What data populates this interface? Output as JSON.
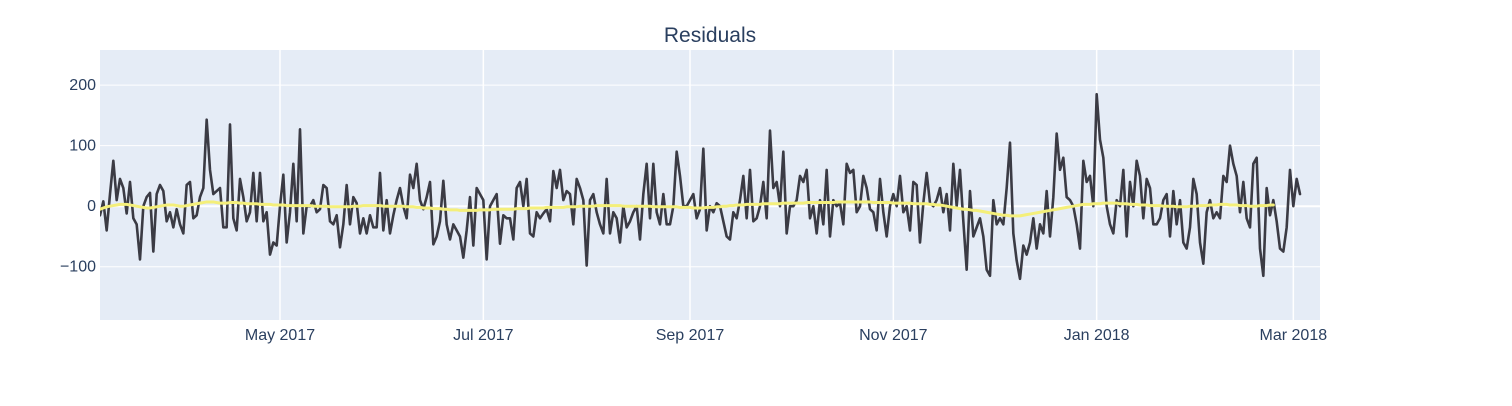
{
  "chart_data": {
    "type": "line",
    "title": "Residuals",
    "xlabel": "",
    "ylabel": "",
    "x_axis": {
      "type": "date",
      "range": [
        "2017-03-08",
        "2018-03-09"
      ],
      "ticks": [
        "2017-05-01",
        "2017-07-01",
        "2017-09-01",
        "2017-11-01",
        "2018-01-01",
        "2018-03-01"
      ],
      "tick_labels": [
        "May 2017",
        "Jul 2017",
        "Sep 2017",
        "Nov 2017",
        "Jan 2018",
        "Mar 2018"
      ]
    },
    "y_axis": {
      "range": [
        -188,
        258
      ],
      "ticks": [
        -100,
        0,
        100,
        200
      ],
      "tick_labels": [
        "−100",
        "0",
        "100",
        "200"
      ]
    },
    "grid": true,
    "legend": "none",
    "colors": {
      "plot_background": "#e5ecf6",
      "grid": "#ffffff",
      "residual_line": "#3b3b44",
      "trend_line": "#f4ef7a",
      "title_text": "#2a3f5f",
      "tick_text": "#2a3f5f"
    },
    "series": [
      {
        "x_start": "2017-03-08",
        "x_step_days": 1,
        "values": [
          -15,
          8,
          -40,
          20,
          75,
          10,
          45,
          30,
          -12,
          40,
          -20,
          -30,
          -88,
          0,
          15,
          22,
          -75,
          20,
          35,
          25,
          -25,
          -10,
          -35,
          -5,
          -30,
          -45,
          35,
          40,
          -20,
          -15,
          15,
          30,
          143,
          60,
          20,
          25,
          30,
          -35,
          -35,
          135,
          -20,
          -40,
          45,
          15,
          -25,
          -10,
          55,
          -25,
          55,
          -25,
          -10,
          -80,
          -60,
          -65,
          0,
          52,
          -60,
          -10,
          70,
          -25,
          127,
          -45,
          0,
          0,
          10,
          -10,
          -5,
          35,
          30,
          -25,
          -30,
          -15,
          -68,
          -30,
          35,
          -30,
          15,
          5,
          -45,
          -20,
          -45,
          -15,
          -35,
          -35,
          55,
          -40,
          10,
          -45,
          -15,
          10,
          30,
          0,
          -20,
          52,
          30,
          70,
          10,
          -5,
          15,
          40,
          -63,
          -50,
          -25,
          42,
          -30,
          -55,
          -30,
          -40,
          -50,
          -85,
          -40,
          15,
          -65,
          30,
          20,
          10,
          -88,
          0,
          10,
          20,
          -62,
          -15,
          -20,
          -20,
          -55,
          30,
          40,
          0,
          45,
          -45,
          -50,
          -10,
          -20,
          -12,
          -5,
          -25,
          58,
          30,
          60,
          10,
          25,
          20,
          -30,
          45,
          30,
          10,
          -98,
          10,
          20,
          -10,
          -30,
          -45,
          45,
          -45,
          -10,
          -20,
          -60,
          0,
          -35,
          -25,
          -10,
          0,
          -55,
          20,
          70,
          -20,
          70,
          -10,
          -30,
          20,
          -30,
          -30,
          0,
          90,
          50,
          0,
          0,
          10,
          20,
          -20,
          -5,
          95,
          -40,
          0,
          -10,
          5,
          0,
          -25,
          -50,
          -55,
          -10,
          -20,
          10,
          50,
          -20,
          60,
          -25,
          -20,
          0,
          40,
          -20,
          125,
          30,
          40,
          0,
          90,
          -45,
          0,
          0,
          10,
          50,
          40,
          60,
          -20,
          0,
          -45,
          10,
          -30,
          60,
          -50,
          10,
          0,
          5,
          -30,
          70,
          55,
          60,
          -10,
          0,
          50,
          30,
          -5,
          -10,
          -40,
          45,
          -10,
          -50,
          0,
          20,
          0,
          50,
          -10,
          0,
          -40,
          40,
          35,
          -60,
          5,
          55,
          5,
          0,
          10,
          30,
          -10,
          20,
          -40,
          70,
          0,
          60,
          -25,
          -105,
          25,
          -50,
          -35,
          -20,
          -50,
          -105,
          -115,
          10,
          -30,
          -20,
          -30,
          30,
          105,
          -45,
          -90,
          -120,
          -65,
          -80,
          -60,
          -20,
          -70,
          -30,
          -45,
          25,
          -50,
          15,
          120,
          60,
          80,
          15,
          10,
          0,
          -30,
          -70,
          75,
          40,
          50,
          0,
          185,
          110,
          80,
          0,
          -30,
          -45,
          10,
          0,
          60,
          -50,
          40,
          0,
          75,
          50,
          -20,
          45,
          30,
          -30,
          -30,
          -20,
          10,
          20,
          -50,
          25,
          -30,
          10,
          -60,
          -70,
          -35,
          45,
          20,
          -60,
          -95,
          -10,
          10,
          -20,
          -10,
          -20,
          50,
          40,
          100,
          70,
          50,
          -10,
          40,
          -20,
          -35,
          70,
          80,
          -70,
          -115,
          30,
          -15,
          10,
          -25,
          -70,
          -75,
          -35,
          60,
          0,
          45,
          20
        ]
      },
      {
        "x_start": "2017-03-08",
        "x_step_days": 1,
        "values": [
          -5,
          -3,
          -1,
          0,
          1,
          2,
          3,
          3,
          3,
          2,
          1,
          0,
          -1,
          -2,
          -3,
          -3,
          -2,
          -1,
          0,
          1,
          2,
          2,
          2,
          1,
          0,
          0,
          1,
          2,
          3,
          4,
          5,
          6,
          7,
          7,
          7,
          6,
          5,
          5,
          5,
          6,
          6,
          6,
          5,
          5,
          4,
          4,
          4,
          4,
          3,
          3,
          3,
          3,
          2,
          2,
          2,
          2,
          1,
          1,
          1,
          1,
          1,
          1,
          1,
          1,
          0,
          0,
          0,
          0,
          0,
          -1,
          -1,
          -1,
          -1,
          -1,
          -1,
          -1,
          0,
          0,
          0,
          1,
          1,
          1,
          1,
          1,
          1,
          0,
          0,
          0,
          0,
          0,
          0,
          0,
          -1,
          -1,
          -1,
          -2,
          -2,
          -3,
          -3,
          -3,
          -4,
          -4,
          -4,
          -5,
          -5,
          -6,
          -6,
          -6,
          -7,
          -7,
          -7,
          -7,
          -7,
          -7,
          -6,
          -6,
          -6,
          -6,
          -5,
          -5,
          -5,
          -5,
          -5,
          -5,
          -5,
          -4,
          -4,
          -4,
          -4,
          -3,
          -3,
          -3,
          -3,
          -3,
          -2,
          -2,
          -2,
          -2,
          -2,
          -2,
          -1,
          -1,
          -1,
          -1,
          0,
          0,
          0,
          0,
          0,
          1,
          1,
          1,
          1,
          1,
          1,
          1,
          1,
          0,
          0,
          0,
          0,
          0,
          0,
          0,
          0,
          0,
          -1,
          -1,
          -1,
          -1,
          -1,
          -1,
          -1,
          -1,
          -2,
          -2,
          -2,
          -2,
          -3,
          -3,
          -3,
          -3,
          -2,
          -2,
          -2,
          -1,
          -1,
          0,
          0,
          1,
          1,
          2,
          2,
          2,
          3,
          3,
          3,
          3,
          3,
          4,
          4,
          4,
          4,
          4,
          4,
          5,
          5,
          5,
          5,
          5,
          5,
          5,
          6,
          6,
          6,
          6,
          6,
          6,
          6,
          6,
          6,
          7,
          7,
          7,
          7,
          7,
          7,
          7,
          7,
          7,
          7,
          7,
          6,
          6,
          6,
          6,
          6,
          6,
          5,
          5,
          5,
          5,
          5,
          5,
          4,
          4,
          4,
          4,
          4,
          3,
          3,
          2,
          2,
          1,
          0,
          -1,
          -2,
          -3,
          -4,
          -5,
          -5,
          -6,
          -7,
          -7,
          -8,
          -9,
          -10,
          -11,
          -12,
          -13,
          -14,
          -15,
          -15,
          -16,
          -16,
          -16,
          -16,
          -15,
          -14,
          -13,
          -12,
          -11,
          -10,
          -9,
          -8,
          -7,
          -6,
          -5,
          -4,
          -3,
          -2,
          -1,
          0,
          1,
          2,
          3,
          3,
          3,
          4,
          4,
          4,
          5,
          5,
          5,
          5,
          5,
          4,
          4,
          4,
          3,
          3,
          3,
          2,
          2,
          2,
          1,
          1,
          1,
          1,
          0,
          0,
          0,
          0,
          -1,
          -1,
          -1,
          -1,
          0,
          0,
          0,
          1,
          1,
          1,
          2,
          2,
          2,
          3,
          3,
          3,
          2,
          2,
          2,
          1,
          1,
          1,
          0,
          0,
          0,
          1,
          1,
          1,
          2,
          2
        ]
      }
    ]
  }
}
